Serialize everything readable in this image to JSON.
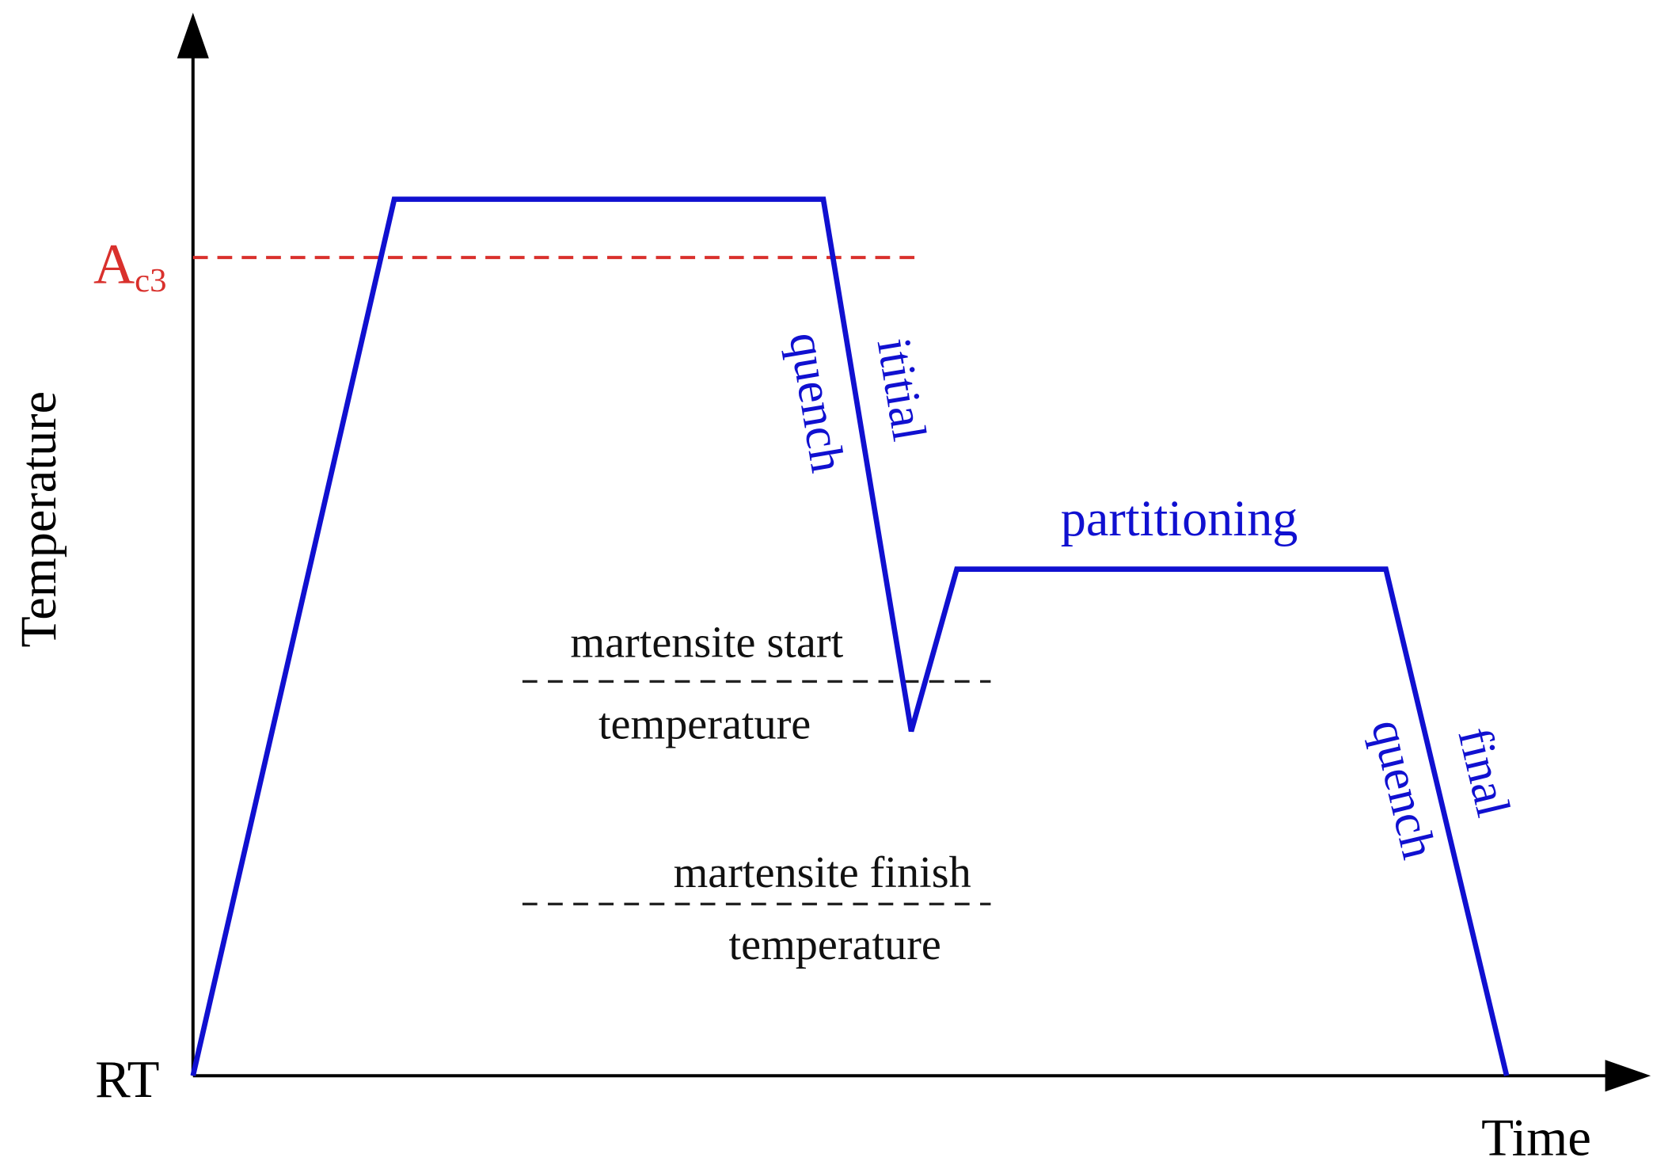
{
  "axes": {
    "y_label": "Temperature",
    "x_label": "Time",
    "origin_label": "RT"
  },
  "levels": {
    "ac3": {
      "main": "A",
      "sub": "c3"
    },
    "martensite_start": {
      "line1": "martensite start",
      "line2": "temperature"
    },
    "martensite_finish": {
      "line1": "martensite finish",
      "line2": "temperature"
    }
  },
  "stages": {
    "initial_quench": {
      "line1": "ititial",
      "line2": "quench"
    },
    "partitioning": "partitioning",
    "final_quench": {
      "line1": "final",
      "line2": "quench"
    }
  }
}
